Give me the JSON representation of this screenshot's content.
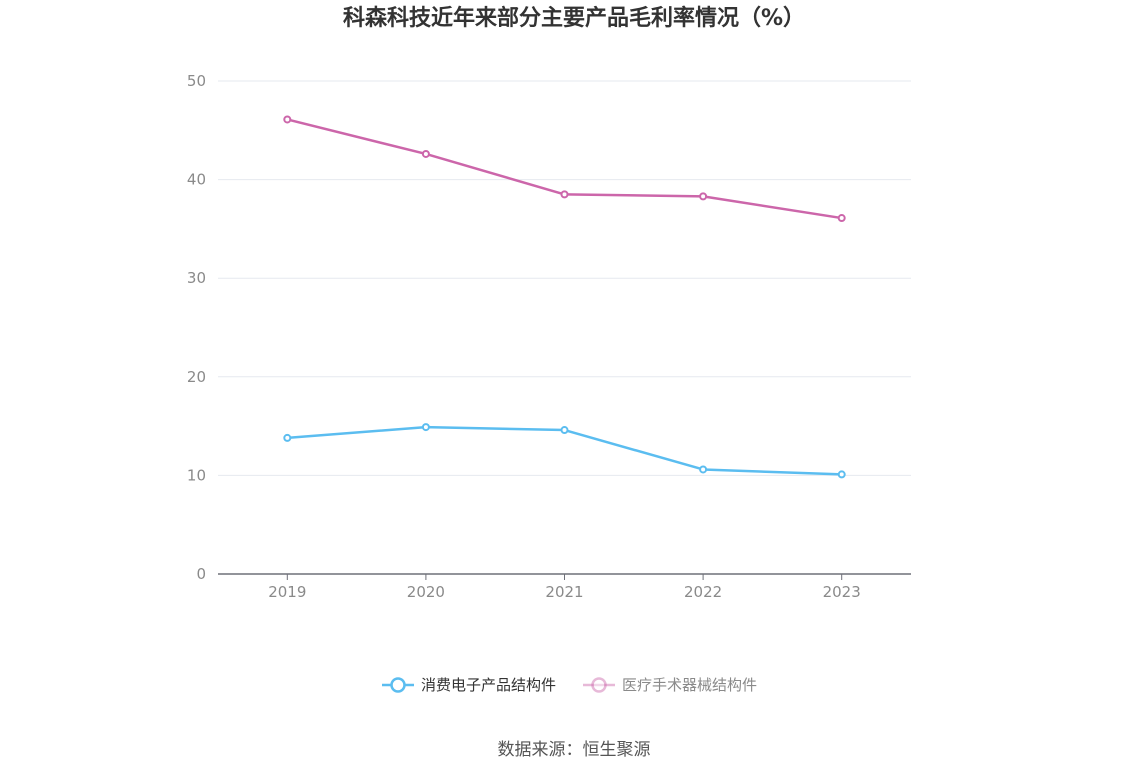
{
  "chart_data": {
    "type": "line",
    "title": "科森科技近年来部分主要产品毛利率情况（%）",
    "xlabel": "",
    "ylabel": "",
    "categories": [
      "2019",
      "2020",
      "2021",
      "2022",
      "2023"
    ],
    "ylim": [
      0,
      50
    ],
    "yticks": [
      0,
      10,
      20,
      30,
      40,
      50
    ],
    "grid": true,
    "legend_position": "bottom",
    "series": [
      {
        "name": "消费电子产品结构件",
        "color": "#5bbdf0",
        "values": [
          13.8,
          14.9,
          14.6,
          10.6,
          10.1
        ]
      },
      {
        "name": "医疗手术器械结构件",
        "color": "#cc66aa",
        "values": [
          46.1,
          42.6,
          38.5,
          38.3,
          36.1
        ]
      }
    ]
  },
  "source_text": "数据来源：恒生聚源",
  "colors": {
    "grid": "#e6e9ef",
    "axis": "#6e7079",
    "title": "#333333",
    "tick": "#8a8a8a"
  }
}
